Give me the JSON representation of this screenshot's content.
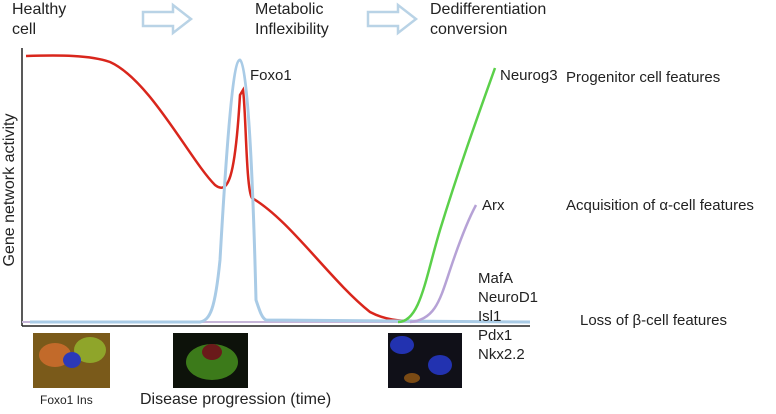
{
  "stages": [
    {
      "lines": [
        "Healthy",
        "cell"
      ]
    },
    {
      "lines": [
        "Metabolic",
        "Inflexibility"
      ]
    },
    {
      "lines": [
        "Dedifferentiation",
        "conversion"
      ]
    }
  ],
  "curve_labels": {
    "foxo1": "Foxo1",
    "neurog3": "Neurog3",
    "arx": "Arx"
  },
  "beta_genes": [
    "MafA",
    "NeuroD1",
    "Isl1",
    "Pdx1",
    "Nkx2.2"
  ],
  "features": {
    "progenitor": "Progenitor cell features",
    "alpha": "Acquisition of α-cell features",
    "beta": "Loss of β-cell features"
  },
  "y_axis_label": "Gene network activity",
  "x_axis_label": "Disease progression (time)",
  "image_caption": "Foxo1 Ins"
}
